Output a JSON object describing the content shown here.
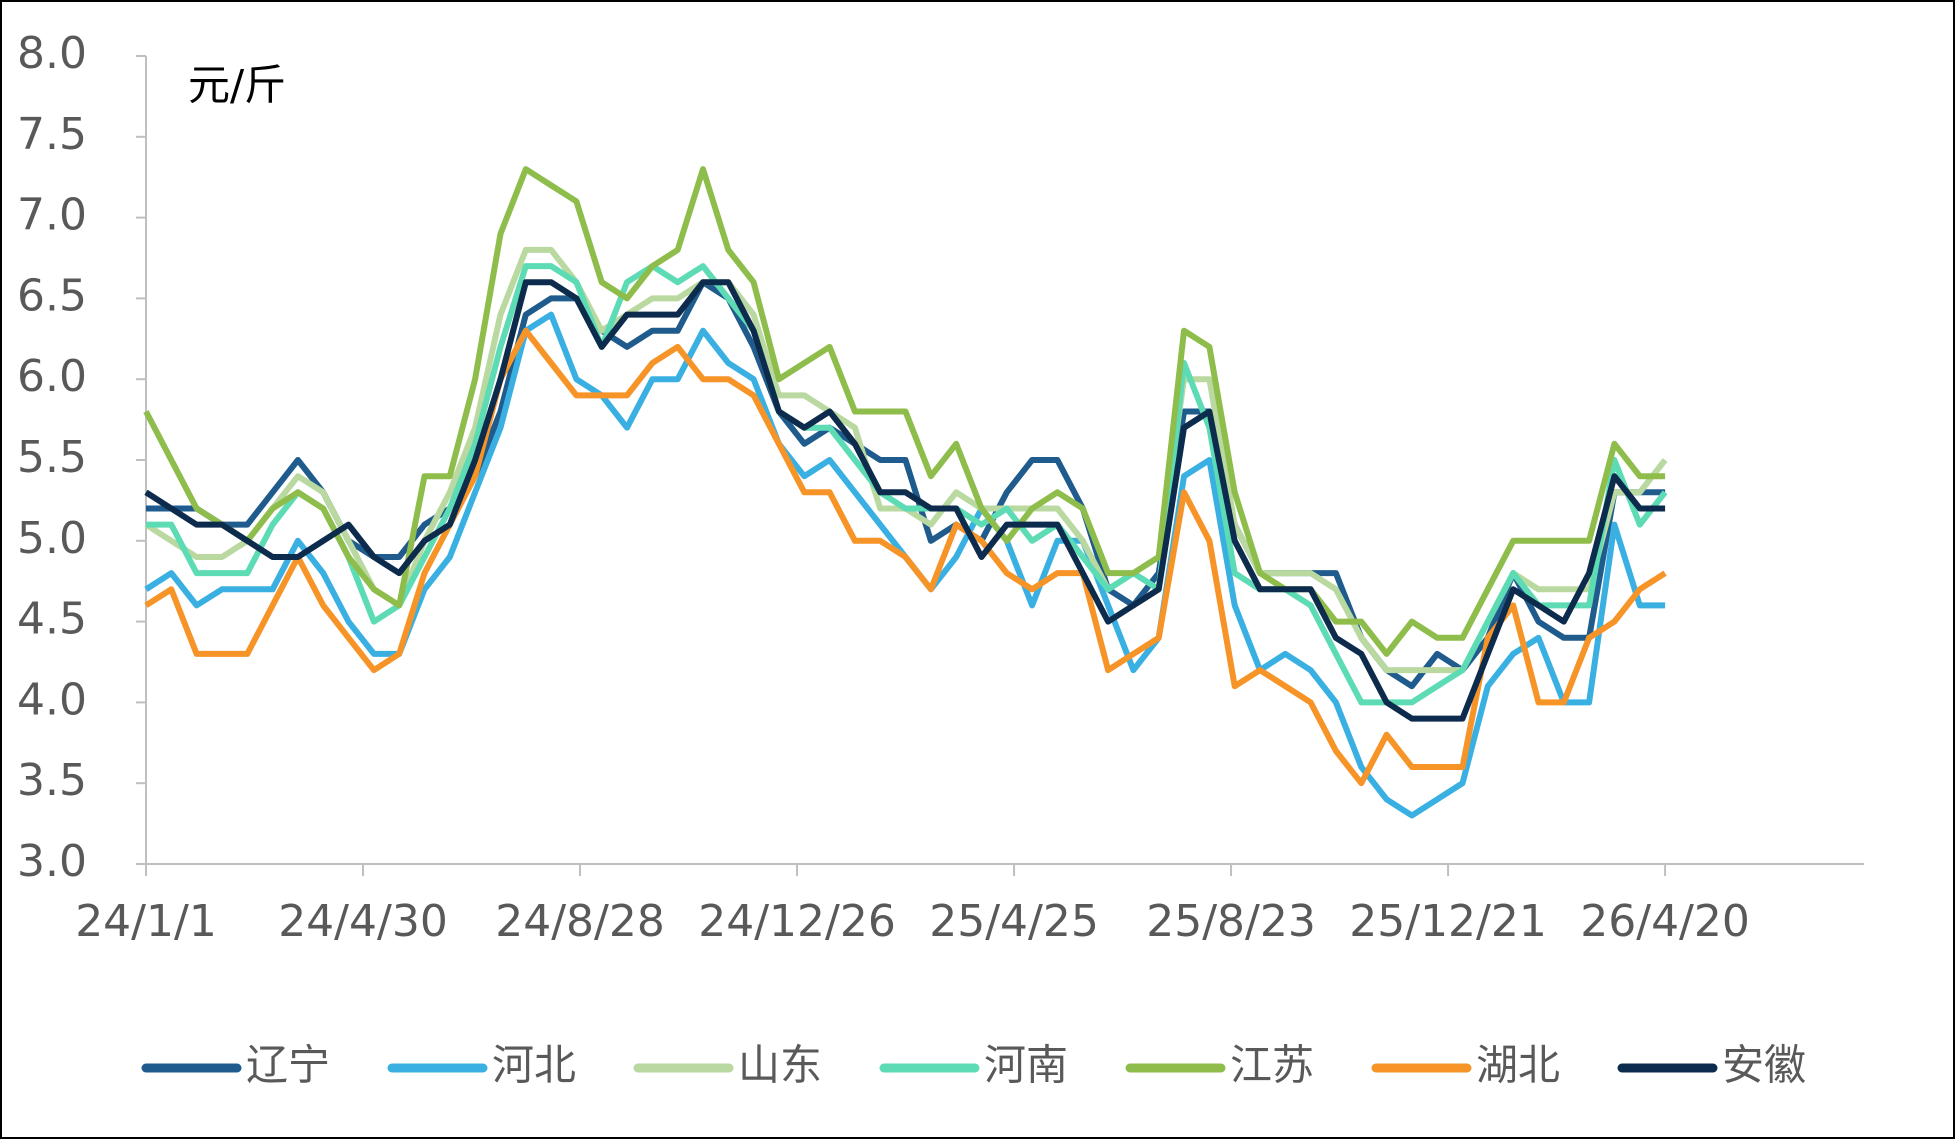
{
  "chart_data": {
    "type": "line",
    "y_label": "元/斤",
    "x": [
      "24/1/1",
      "24/1/15",
      "24/1/29",
      "24/2/12",
      "24/2/26",
      "24/3/11",
      "24/3/25",
      "24/4/8",
      "24/4/22",
      "24/5/6",
      "24/5/20",
      "24/6/3",
      "24/6/17",
      "24/7/1",
      "24/7/15",
      "24/7/29",
      "24/8/12",
      "24/8/26",
      "24/9/9",
      "24/9/23",
      "24/10/7",
      "24/10/21",
      "24/11/4",
      "24/11/18",
      "24/12/2",
      "24/12/16",
      "24/12/30",
      "25/1/13",
      "25/1/27",
      "25/2/10",
      "25/2/24",
      "25/3/10",
      "25/3/24",
      "25/4/7",
      "25/4/21",
      "25/5/5",
      "25/5/19",
      "25/6/2",
      "25/6/16",
      "25/6/30",
      "25/7/14",
      "25/7/28",
      "25/8/11",
      "25/8/25",
      "25/9/8",
      "25/9/22",
      "25/10/6",
      "25/10/20",
      "25/11/3",
      "25/11/17",
      "25/12/1",
      "25/12/15",
      "25/12/29",
      "26/1/12",
      "26/1/26",
      "26/2/9",
      "26/2/23",
      "26/3/9",
      "26/3/23",
      "26/4/6",
      "26/4/20"
    ],
    "series": [
      {
        "name": "辽宁",
        "color": "#1f5b8c",
        "values": [
          5.2,
          5.2,
          5.2,
          5.1,
          5.1,
          5.3,
          5.5,
          5.3,
          5.0,
          4.9,
          4.9,
          5.1,
          5.2,
          5.4,
          5.8,
          6.4,
          6.5,
          6.5,
          6.3,
          6.2,
          6.3,
          6.3,
          6.6,
          6.5,
          6.2,
          5.8,
          5.6,
          5.7,
          5.6,
          5.5,
          5.5,
          5.0,
          5.1,
          5.0,
          5.3,
          5.5,
          5.5,
          5.2,
          4.7,
          4.6,
          4.8,
          5.8,
          5.8,
          5.1,
          4.8,
          4.8,
          4.8,
          4.8,
          4.4,
          4.2,
          4.1,
          4.3,
          4.2,
          4.4,
          4.8,
          4.5,
          4.4,
          4.4,
          5.3,
          5.3,
          5.3
        ]
      },
      {
        "name": "河北",
        "color": "#3ab0e2",
        "values": [
          4.7,
          4.8,
          4.6,
          4.7,
          4.7,
          4.7,
          5.0,
          4.8,
          4.5,
          4.3,
          4.3,
          4.7,
          4.9,
          5.3,
          5.7,
          6.3,
          6.4,
          6.0,
          5.9,
          5.7,
          6.0,
          6.0,
          6.3,
          6.1,
          6.0,
          5.6,
          5.4,
          5.5,
          5.3,
          5.1,
          4.9,
          4.7,
          4.9,
          5.2,
          5.0,
          4.6,
          5.0,
          5.0,
          4.6,
          4.2,
          4.4,
          5.4,
          5.5,
          4.6,
          4.2,
          4.3,
          4.2,
          4.0,
          3.6,
          3.4,
          3.3,
          3.4,
          3.5,
          4.1,
          4.3,
          4.4,
          4.0,
          4.0,
          5.1,
          4.6,
          4.6
        ]
      },
      {
        "name": "山东",
        "color": "#b9d9a0",
        "values": [
          5.1,
          5.0,
          4.9,
          4.9,
          5.0,
          5.2,
          5.4,
          5.3,
          5.0,
          4.7,
          4.6,
          5.0,
          5.3,
          5.7,
          6.4,
          6.8,
          6.8,
          6.6,
          6.3,
          6.4,
          6.5,
          6.5,
          6.6,
          6.6,
          6.4,
          5.9,
          5.9,
          5.8,
          5.7,
          5.2,
          5.2,
          5.1,
          5.3,
          5.2,
          5.2,
          5.2,
          5.2,
          5.0,
          4.7,
          4.8,
          4.9,
          6.0,
          6.0,
          5.1,
          4.8,
          4.8,
          4.8,
          4.7,
          4.4,
          4.2,
          4.2,
          4.2,
          4.2,
          4.5,
          4.8,
          4.7,
          4.7,
          4.7,
          5.3,
          5.3,
          5.5
        ]
      },
      {
        "name": "河南",
        "color": "#5ddbb5",
        "values": [
          5.1,
          5.1,
          4.8,
          4.8,
          4.8,
          5.1,
          5.3,
          5.2,
          4.9,
          4.5,
          4.6,
          4.9,
          5.2,
          5.6,
          6.2,
          6.7,
          6.7,
          6.6,
          6.2,
          6.6,
          6.7,
          6.6,
          6.7,
          6.5,
          6.3,
          5.8,
          5.7,
          5.7,
          5.5,
          5.3,
          5.2,
          5.2,
          5.2,
          5.1,
          5.2,
          5.0,
          5.1,
          4.9,
          4.7,
          4.8,
          4.7,
          6.1,
          5.7,
          4.8,
          4.7,
          4.7,
          4.6,
          4.3,
          4.0,
          4.0,
          4.0,
          4.1,
          4.2,
          4.5,
          4.8,
          4.6,
          4.6,
          4.6,
          5.5,
          5.1,
          5.3
        ]
      },
      {
        "name": "江苏",
        "color": "#8fbd4c",
        "values": [
          5.8,
          5.5,
          5.2,
          5.1,
          5.0,
          5.2,
          5.3,
          5.2,
          4.9,
          4.7,
          4.6,
          5.4,
          5.4,
          6.0,
          6.9,
          7.3,
          7.2,
          7.1,
          6.6,
          6.5,
          6.7,
          6.8,
          7.3,
          6.8,
          6.6,
          6.0,
          6.1,
          6.2,
          5.8,
          5.8,
          5.8,
          5.4,
          5.6,
          5.2,
          5.0,
          5.2,
          5.3,
          5.2,
          4.8,
          4.8,
          4.9,
          6.3,
          6.2,
          5.3,
          4.8,
          4.7,
          4.7,
          4.5,
          4.5,
          4.3,
          4.5,
          4.4,
          4.4,
          4.7,
          5.0,
          5.0,
          5.0,
          5.0,
          5.6,
          5.4,
          5.4
        ]
      },
      {
        "name": "湖北",
        "color": "#f79428",
        "values": [
          4.6,
          4.7,
          4.3,
          4.3,
          4.3,
          4.6,
          4.9,
          4.6,
          4.4,
          4.2,
          4.3,
          4.8,
          5.1,
          5.4,
          6.0,
          6.3,
          6.1,
          5.9,
          5.9,
          5.9,
          6.1,
          6.2,
          6.0,
          6.0,
          5.9,
          5.6,
          5.3,
          5.3,
          5.0,
          5.0,
          4.9,
          4.7,
          5.1,
          5.0,
          4.8,
          4.7,
          4.8,
          4.8,
          4.2,
          4.3,
          4.4,
          5.3,
          5.0,
          4.1,
          4.2,
          4.1,
          4.0,
          3.7,
          3.5,
          3.8,
          3.6,
          3.6,
          3.6,
          4.4,
          4.6,
          4.0,
          4.0,
          4.4,
          4.5,
          4.7,
          4.8
        ]
      },
      {
        "name": "安徽",
        "color": "#0d2b4c",
        "values": [
          5.3,
          5.2,
          5.1,
          5.1,
          5.0,
          4.9,
          4.9,
          5.0,
          5.1,
          4.9,
          4.8,
          5.0,
          5.1,
          5.5,
          6.0,
          6.6,
          6.6,
          6.5,
          6.2,
          6.4,
          6.4,
          6.4,
          6.6,
          6.6,
          6.3,
          5.8,
          5.7,
          5.8,
          5.6,
          5.3,
          5.3,
          5.2,
          5.2,
          4.9,
          5.1,
          5.1,
          5.1,
          4.8,
          4.5,
          4.6,
          4.7,
          5.7,
          5.8,
          5.0,
          4.7,
          4.7,
          4.7,
          4.4,
          4.3,
          4.0,
          3.9,
          3.9,
          3.9,
          4.3,
          4.7,
          4.6,
          4.5,
          4.8,
          5.4,
          5.2,
          5.2
        ]
      }
    ],
    "xlim": [
      "24/1/1",
      "26/8/8"
    ],
    "xticks": [
      "24/1/1",
      "24/4/30",
      "24/8/28",
      "24/12/26",
      "25/4/25",
      "25/8/23",
      "25/12/21",
      "26/4/20"
    ],
    "ylim": [
      3,
      8
    ],
    "yticks": [
      {
        "value": 3,
        "label": "3.0"
      },
      {
        "value": 3.5,
        "label": "3.5"
      },
      {
        "value": 4,
        "label": "4.0"
      },
      {
        "value": 4.5,
        "label": "4.5"
      },
      {
        "value": 5,
        "label": "5.0"
      },
      {
        "value": 5.5,
        "label": "5.5"
      },
      {
        "value": 6,
        "label": "6.0"
      },
      {
        "value": 6.5,
        "label": "6.5"
      },
      {
        "value": 7,
        "label": "7.0"
      },
      {
        "value": 7.5,
        "label": "7.5"
      },
      {
        "value": 8,
        "label": "8.0"
      }
    ],
    "grid": false,
    "legend": "bottom"
  }
}
